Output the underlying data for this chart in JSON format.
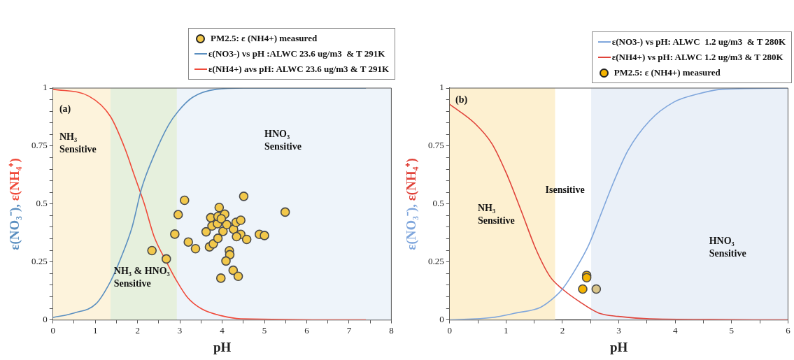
{
  "chart_data": [
    {
      "type": "line",
      "xlabel": "pH",
      "ylabel": "ε(NO₃⁻), ε(NH₄⁺)",
      "xlim": [
        0,
        8
      ],
      "ylim": [
        0,
        1
      ],
      "xticks": [
        0,
        {
          "value": 0.5,
          "label": null
        },
        1,
        {
          "value": 1.5,
          "label": null
        },
        2,
        {
          "value": 2.5,
          "label": null
        },
        3,
        {
          "value": 3.5,
          "label": null
        },
        4,
        {
          "value": 4.5,
          "label": null
        },
        5,
        {
          "value": 5.5,
          "label": null
        },
        6,
        {
          "value": 6.5,
          "label": null
        },
        7,
        {
          "value": 7.5,
          "label": null
        },
        8
      ],
      "yticks": [
        0,
        {
          "value": 0.05,
          "label": null
        },
        {
          "value": 0.1,
          "label": null
        },
        {
          "value": 0.15,
          "label": null
        },
        {
          "value": 0.2,
          "label": null
        },
        0.25,
        {
          "value": 0.3,
          "label": null
        },
        {
          "value": 0.35,
          "label": null
        },
        {
          "value": 0.4,
          "label": null
        },
        {
          "value": 0.45,
          "label": null
        },
        0.5,
        {
          "value": 0.55,
          "label": null
        },
        {
          "value": 0.6,
          "label": null
        },
        {
          "value": 0.65,
          "label": null
        },
        {
          "value": 0.7,
          "label": null
        },
        0.75,
        {
          "value": 0.8,
          "label": null
        },
        {
          "value": 0.85,
          "label": null
        },
        {
          "value": 0.9,
          "label": null
        },
        {
          "value": 0.95,
          "label": null
        },
        1
      ],
      "grid": false,
      "legend": "top right",
      "series": [
        {
          "type": "scatter",
          "name": "PM2.5: ε (NH4+) measured",
          "color": "#f2c84b",
          "marker": "circle",
          "x": [
            3.11,
            2.96,
            2.88,
            2.34,
            2.68,
            3.2,
            3.37,
            3.62,
            3.7,
            3.79,
            3.9,
            3.73,
            3.76,
            3.89,
            3.93,
            3.9,
            4.06,
            3.98,
            4.02,
            4.11,
            4.27,
            4.33,
            4.44,
            4.51,
            4.44,
            4.34,
            4.58,
            4.88,
            5.0,
            5.49,
            4.17,
            4.18,
            4.09,
            4.26,
            4.38,
            3.97
          ],
          "values": [
            0.516,
            0.454,
            0.37,
            0.299,
            0.263,
            0.336,
            0.307,
            0.38,
            0.315,
            0.328,
            0.352,
            0.441,
            0.405,
            0.415,
            0.485,
            0.446,
            0.456,
            0.436,
            0.382,
            0.411,
            0.391,
            0.421,
            0.43,
            0.533,
            0.369,
            0.359,
            0.347,
            0.369,
            0.364,
            0.465,
            0.298,
            0.281,
            0.254,
            0.214,
            0.188,
            0.18
          ]
        },
        {
          "type": "line",
          "name": "ε(NO3-) vs pH :ALWC 23.6 ug/m3  & T 291K",
          "color": "#5b8fc0",
          "x": [
            0,
            0.5,
            1.02,
            1.36,
            1.59,
            1.87,
            2.1,
            2.39,
            2.73,
            2.96,
            3.3,
            3.87,
            4.5,
            7.4
          ],
          "values": [
            0.01,
            0.03,
            0.07,
            0.166,
            0.26,
            0.4,
            0.57,
            0.71,
            0.84,
            0.9,
            0.96,
            0.995,
            1,
            1
          ]
        },
        {
          "type": "line",
          "name": "ε(NH4+) avs pH: ALWC 23.6 ug/m3 & T 291K",
          "color": "#f04a3a",
          "x": [
            0,
            0.85,
            1.36,
            1.7,
            1.93,
            2.16,
            2.39,
            2.67,
            2.9,
            3.18,
            3.52,
            3.98,
            4.44,
            7.4
          ],
          "values": [
            0.995,
            0.965,
            0.877,
            0.74,
            0.62,
            0.5,
            0.36,
            0.255,
            0.176,
            0.097,
            0.047,
            0.018,
            0.005,
            0
          ]
        }
      ],
      "bands": [
        {
          "axis": "x",
          "from": 0,
          "to": 1.36,
          "color": "#fdf3dc"
        },
        {
          "axis": "x",
          "from": 1.36,
          "to": 2.93,
          "color": "#e6f0dd"
        },
        {
          "axis": "x",
          "from": 2.93,
          "to": 8,
          "color": "#eef4fa"
        }
      ],
      "annotations": [
        "(a)",
        "NH₃ Sensitive",
        "NH₃ & HNO₃ Sensitive",
        "HNO₃ Sensitive"
      ]
    },
    {
      "type": "line",
      "xlabel": "pH",
      "ylabel": "ε(NO₃⁻), ε(NH₄⁺)",
      "xlim": [
        0,
        6
      ],
      "ylim": [
        0,
        1
      ],
      "xticks": [
        0,
        {
          "value": 0.5,
          "label": null
        },
        1,
        {
          "value": 1.5,
          "label": null
        },
        2,
        {
          "value": 2.5,
          "label": null
        },
        3,
        {
          "value": 3.5,
          "label": null
        },
        4,
        {
          "value": 4.5,
          "label": null
        },
        5,
        {
          "value": 5.5,
          "label": null
        },
        6
      ],
      "yticks": [
        0,
        {
          "value": 0.05,
          "label": null
        },
        {
          "value": 0.1,
          "label": null
        },
        {
          "value": 0.15,
          "label": null
        },
        {
          "value": 0.2,
          "label": null
        },
        0.25,
        {
          "value": 0.3,
          "label": null
        },
        {
          "value": 0.35,
          "label": null
        },
        {
          "value": 0.4,
          "label": null
        },
        {
          "value": 0.45,
          "label": null
        },
        0.5,
        {
          "value": 0.55,
          "label": null
        },
        {
          "value": 0.6,
          "label": null
        },
        {
          "value": 0.65,
          "label": null
        },
        {
          "value": 0.7,
          "label": null
        },
        0.75,
        {
          "value": 0.8,
          "label": null
        },
        {
          "value": 0.85,
          "label": null
        },
        {
          "value": 0.9,
          "label": null
        },
        {
          "value": 0.95,
          "label": null
        },
        1
      ],
      "grid": false,
      "legend": "top right",
      "series": [
        {
          "type": "line",
          "name": "ε(NO3-) vs pH: ALWC  1.2 ug/m3  & T 280K",
          "color": "#7fa6dc",
          "x": [
            0,
            0.75,
            1.18,
            1.61,
            1.87,
            2.0,
            2.26,
            2.47,
            2.69,
            2.9,
            3.16,
            3.55,
            3.98,
            4.41,
            4.84,
            6
          ],
          "values": [
            0,
            0.01,
            0.03,
            0.054,
            0.1,
            0.133,
            0.23,
            0.325,
            0.46,
            0.59,
            0.73,
            0.86,
            0.94,
            0.975,
            0.995,
            1
          ]
        },
        {
          "type": "line",
          "name": "ε(NH4+) vs pH: ALWC 1.2 ug/m3 & T 280K",
          "color": "#e0433a",
          "x": [
            0,
            0.45,
            0.75,
            1.01,
            1.27,
            1.53,
            1.78,
            2.0,
            2.3,
            2.64,
            2.99,
            3.55,
            6
          ],
          "values": [
            0.93,
            0.847,
            0.76,
            0.63,
            0.47,
            0.305,
            0.187,
            0.133,
            0.079,
            0.03,
            0.015,
            0.005,
            0
          ]
        },
        {
          "type": "scatter",
          "name": "PM2.5: ε (NH4+) measured",
          "color": "#f5b400",
          "colors": [
            "#f5b400",
            "#f5b400",
            "#f5b400",
            "#d9c58a"
          ],
          "marker": "circle",
          "x": [
            2.43,
            2.43,
            2.36,
            2.6
          ],
          "values": [
            0.192,
            0.182,
            0.133,
            0.133
          ]
        }
      ],
      "bands": [
        {
          "axis": "x",
          "from": 0,
          "to": 1.87,
          "color": "#fdf0d0"
        },
        {
          "axis": "x",
          "from": 2.51,
          "to": 6,
          "color": "#eaf0f8"
        }
      ],
      "annotations": [
        "(b)",
        "NH₃ Sensitive",
        "Isensitive",
        "HNO₃ Sensitive"
      ]
    }
  ]
}
